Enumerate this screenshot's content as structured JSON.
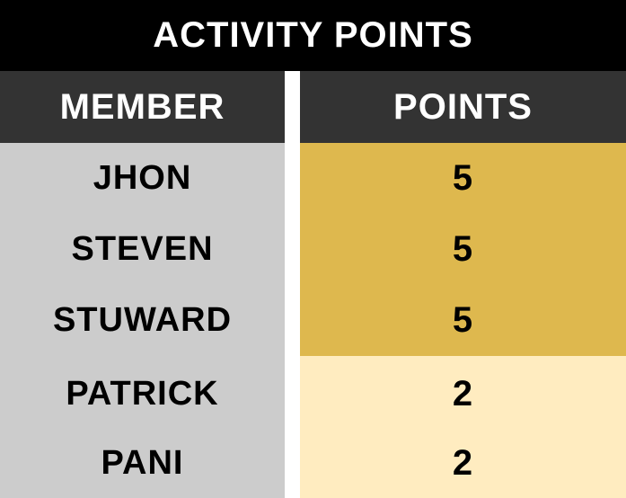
{
  "title": "ACTIVITY POINTS",
  "headers": {
    "member": "MEMBER",
    "points": "POINTS"
  },
  "rows": [
    {
      "member": "JHON",
      "points": "5"
    },
    {
      "member": "STEVEN",
      "points": "5"
    },
    {
      "member": "STUWARD",
      "points": "5"
    },
    {
      "member": "PATRICK",
      "points": "2"
    },
    {
      "member": "PANI",
      "points": "2"
    }
  ],
  "colors": {
    "title_bg": "#000000",
    "header_bg": "#333333",
    "member_bg": "#cccccc",
    "points_high_bg": "#deb84e",
    "points_low_bg": "#ffecc0"
  }
}
